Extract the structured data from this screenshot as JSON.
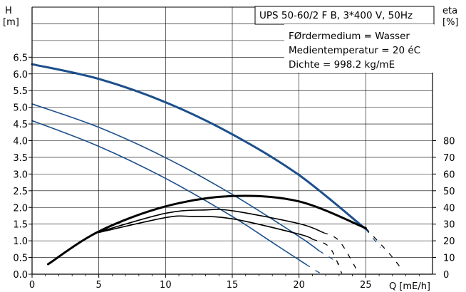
{
  "chart_data": {
    "type": "line",
    "title": "UPS 50-60/2 F B, 3*400 V, 50Hz",
    "info_lines": [
      "FØrdermedium = Wasser",
      "Medientemperatur = 20 éC",
      "Dichte = 998.2 kg/mE"
    ],
    "y_left_label": [
      "H",
      "[m]"
    ],
    "y_right_label": [
      "eta",
      "[%]"
    ],
    "xlabel": "Q [mE/h]",
    "xlim": [
      0,
      30
    ],
    "ylim_left": [
      0,
      8
    ],
    "ylim_right": [
      0,
      160
    ],
    "x_ticks": [
      "0",
      "5",
      "10",
      "15",
      "20",
      "25"
    ],
    "y_left_ticks": [
      "0.0",
      "0.5",
      "1.0",
      "1.5",
      "2.0",
      "2.5",
      "3.0",
      "3.5",
      "4.0",
      "4.5",
      "5.0",
      "5.5",
      "6.0",
      "6.5"
    ],
    "y_right_ticks": [
      "0",
      "10",
      "20",
      "30",
      "40",
      "50",
      "60",
      "70",
      "80"
    ],
    "grid": true,
    "colors": {
      "head": "#1c4f8c",
      "efficiency": "#000000"
    },
    "series": [
      {
        "kind": "head",
        "points": [
          [
            0,
            6.29
          ],
          [
            5,
            5.85
          ],
          [
            10,
            5.15
          ],
          [
            15,
            4.19
          ],
          [
            20,
            2.97
          ],
          [
            25,
            1.35
          ]
        ],
        "extension": [
          [
            25.8,
            0.95
          ],
          [
            26.1,
            0.8
          ]
        ],
        "heavy": true
      },
      {
        "kind": "head",
        "points": [
          [
            0,
            5.1
          ],
          [
            5,
            4.4
          ],
          [
            10,
            3.49
          ],
          [
            15,
            2.39
          ],
          [
            20,
            1.13
          ],
          [
            21.5,
            0.7
          ]
        ],
        "extension": [
          [
            22.6,
            0.43
          ],
          [
            23.0,
            0.3
          ]
        ],
        "heavy": false
      },
      {
        "kind": "head",
        "points": [
          [
            0,
            4.6
          ],
          [
            5,
            3.83
          ],
          [
            10,
            2.87
          ],
          [
            15,
            1.73
          ],
          [
            18,
            0.95
          ],
          [
            20.5,
            0.3
          ]
        ],
        "extension": [
          [
            21.5,
            0.05
          ],
          [
            21.9,
            0.0
          ]
        ],
        "heavy": false
      },
      {
        "kind": "efficiency",
        "points": [
          [
            1.2,
            6
          ],
          [
            5,
            25.6
          ],
          [
            10,
            40.6
          ],
          [
            15,
            46.8
          ],
          [
            20,
            43.6
          ],
          [
            25,
            27.6
          ]
        ],
        "extension": [
          [
            26.8,
            12.0
          ],
          [
            27.6,
            4.0
          ]
        ],
        "heavy": true
      },
      {
        "kind": "efficiency",
        "points": [
          [
            5,
            25.3
          ],
          [
            10,
            36.5
          ],
          [
            13,
            38.5
          ],
          [
            15,
            38.0
          ],
          [
            20,
            30.3
          ],
          [
            21.8,
            25.0
          ]
        ],
        "extension": [
          [
            23.0,
            20.0
          ],
          [
            24.3,
            3.0
          ]
        ],
        "heavy": false
      },
      {
        "kind": "efficiency",
        "points": [
          [
            5,
            25.0
          ],
          [
            10,
            33.9
          ],
          [
            12,
            34.6
          ],
          [
            15,
            33.2
          ],
          [
            20,
            24.0
          ],
          [
            21.0,
            21.0
          ]
        ],
        "extension": [
          [
            22.3,
            16.0
          ],
          [
            23.2,
            0.5
          ]
        ],
        "heavy": false
      }
    ]
  }
}
